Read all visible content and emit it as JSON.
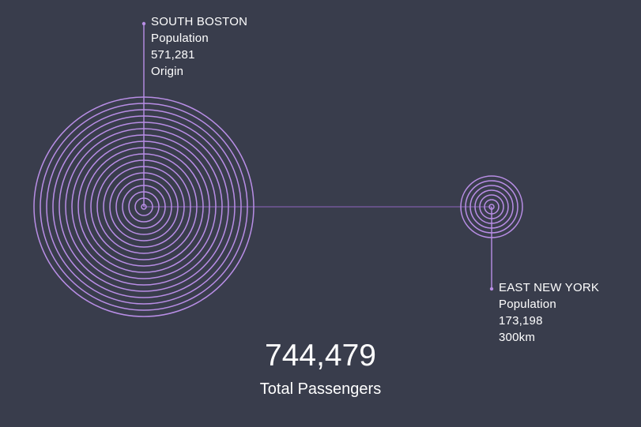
{
  "colors": {
    "background": "#393d4c",
    "ring": "#b98ee6",
    "connector": "#7e5ea8",
    "text": "#ffffff"
  },
  "origin": {
    "name": "SOUTH BOSTON",
    "population_label": "Population",
    "population": "571,281",
    "role": "Origin",
    "ring_count": 18
  },
  "destination": {
    "name": "EAST NEW YORK",
    "population_label": "Population",
    "population": "173,198",
    "distance": "300km",
    "ring_count": 7
  },
  "summary": {
    "total_value": "744,479",
    "total_label": "Total Passengers"
  }
}
